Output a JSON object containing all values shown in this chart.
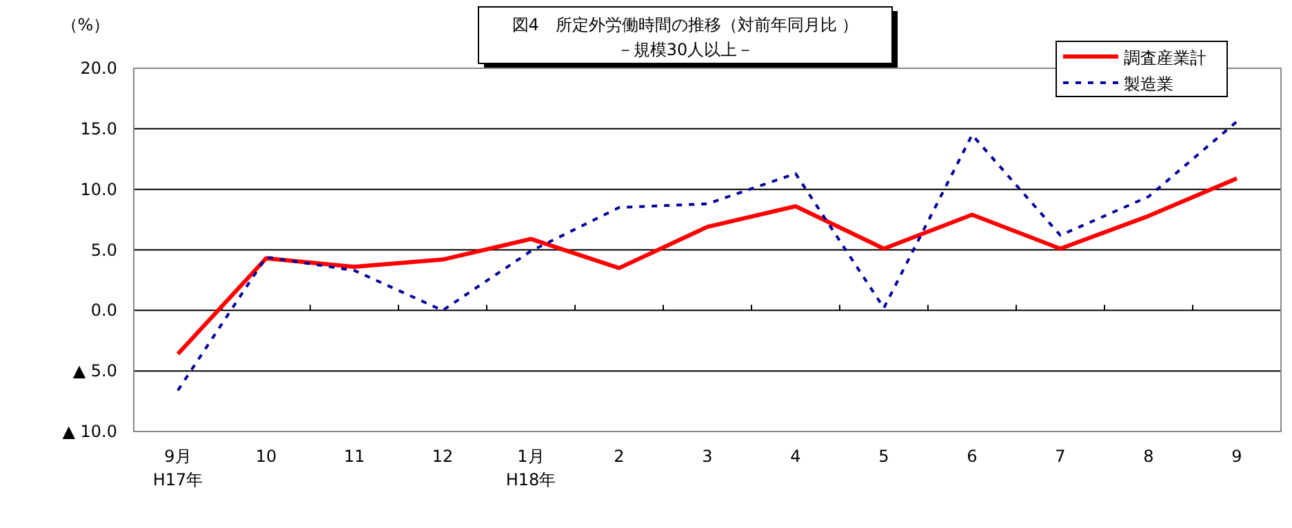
{
  "chart_data": {
    "type": "line",
    "title": "図4　所定外労働時間の推移（対前年同月比 ）",
    "subtitle": "－規模30人以上－",
    "ylabel": "（%）",
    "categories": [
      "9月\nH17年",
      "10",
      "11",
      "12",
      "1月\nH18年",
      "2",
      "3",
      "4",
      "5",
      "6",
      "7",
      "8",
      "9"
    ],
    "series": [
      {
        "name": "調査産業計",
        "color": "#ff0000",
        "line_style": "solid",
        "values": [
          -3.6,
          4.3,
          3.6,
          4.2,
          5.9,
          3.5,
          6.9,
          8.6,
          5.1,
          7.9,
          5.1,
          7.8,
          10.9
        ]
      },
      {
        "name": "製造業",
        "color": "#000099",
        "line_style": "dashed",
        "values": [
          -6.6,
          4.4,
          3.3,
          0.0,
          4.9,
          8.5,
          8.8,
          11.3,
          0.2,
          14.5,
          6.2,
          9.4,
          15.6
        ]
      }
    ],
    "ylim": [
      -10,
      20
    ],
    "yticks": [
      {
        "value": -10,
        "label": "▲ 10.0"
      },
      {
        "value": -5,
        "label": "▲ 5.0"
      },
      {
        "value": 0,
        "label": "0.0"
      },
      {
        "value": 5,
        "label": "5.0"
      },
      {
        "value": 10,
        "label": "10.0"
      },
      {
        "value": 15,
        "label": "15.0"
      },
      {
        "value": 20,
        "label": "20.0"
      }
    ],
    "grid": "y",
    "legend": "top right",
    "marker": "none"
  }
}
